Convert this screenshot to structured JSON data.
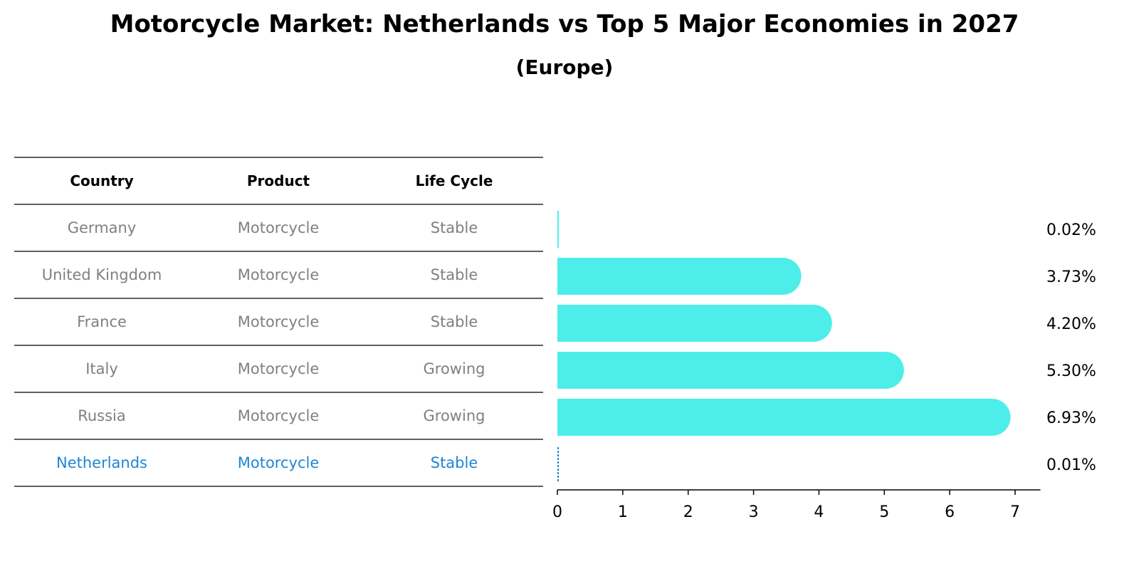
{
  "title": "Motorcycle Market: Netherlands vs Top 5 Major Economies in 2027",
  "subtitle": "(Europe)",
  "table": {
    "headers": [
      "Country",
      "Product",
      "Life Cycle"
    ],
    "rows": [
      {
        "country": "Germany",
        "product": "Motorcycle",
        "life_cycle": "Stable"
      },
      {
        "country": "United Kingdom",
        "product": "Motorcycle",
        "life_cycle": "Stable"
      },
      {
        "country": "France",
        "product": "Motorcycle",
        "life_cycle": "Stable"
      },
      {
        "country": "Italy",
        "product": "Motorcycle",
        "life_cycle": "Growing"
      },
      {
        "country": "Russia",
        "product": "Motorcycle",
        "life_cycle": "Growing"
      },
      {
        "country": "Netherlands",
        "product": "Motorcycle",
        "life_cycle": "Stable",
        "highlight": true
      }
    ]
  },
  "chart_data": {
    "type": "bar",
    "orientation": "horizontal",
    "categories": [
      "Germany",
      "United Kingdom",
      "France",
      "Italy",
      "Russia",
      "Netherlands"
    ],
    "values": [
      0.02,
      3.73,
      4.2,
      5.3,
      6.93,
      0.01
    ],
    "data_labels": [
      "0.02%",
      "3.73%",
      "4.20%",
      "5.30%",
      "6.93%",
      "0.01%"
    ],
    "xlim": [
      0,
      7.3
    ],
    "xticks": [
      0,
      1,
      2,
      3,
      4,
      5,
      6,
      7
    ],
    "grid": false,
    "bar_color": "#4deee9",
    "highlight_color": "#1f86d3"
  },
  "colors": {
    "text_muted": "#808080",
    "highlight_text": "#1f86d3"
  }
}
